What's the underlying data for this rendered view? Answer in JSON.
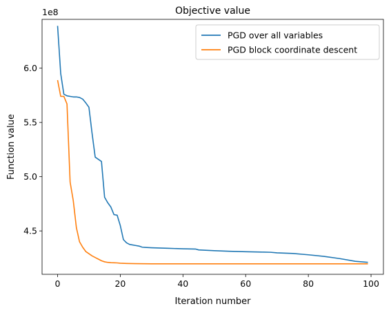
{
  "chart_data": {
    "type": "line",
    "title": "Objective value",
    "xlabel": "Iteration number",
    "ylabel": "Function value",
    "y_multiplier_label": "1e8",
    "xlim": [
      -4.95,
      103.95
    ],
    "ylim": [
      4.1,
      6.45
    ],
    "x_ticks": [
      0,
      20,
      40,
      60,
      80,
      100
    ],
    "x_tick_labels": [
      "0",
      "20",
      "40",
      "60",
      "80",
      "100"
    ],
    "y_ticks": [
      4.5,
      5.0,
      5.5,
      6.0
    ],
    "y_tick_labels": [
      "4.5",
      "5.0",
      "5.5",
      "6.0"
    ],
    "grid": false,
    "legend_position": "top-right",
    "series": [
      {
        "name": "PGD over all variables",
        "color": "#1f77b4",
        "x": [
          0,
          1,
          2,
          3,
          4,
          5,
          6,
          7,
          8,
          9,
          10,
          11,
          12,
          13,
          14,
          15,
          16,
          17,
          18,
          19,
          20,
          21,
          22,
          23,
          24,
          25,
          26,
          27,
          28,
          30,
          35,
          40,
          44,
          45,
          50,
          55,
          60,
          65,
          68,
          70,
          75,
          80,
          85,
          90,
          95,
          99
        ],
        "y": [
          6.39,
          5.95,
          5.76,
          5.745,
          5.74,
          5.735,
          5.735,
          5.73,
          5.715,
          5.68,
          5.64,
          5.4,
          5.18,
          5.16,
          5.14,
          4.81,
          4.76,
          4.72,
          4.65,
          4.645,
          4.55,
          4.42,
          4.39,
          4.375,
          4.37,
          4.365,
          4.36,
          4.35,
          4.348,
          4.345,
          4.34,
          4.335,
          4.333,
          4.325,
          4.318,
          4.312,
          4.308,
          4.305,
          4.303,
          4.298,
          4.292,
          4.28,
          4.265,
          4.245,
          4.22,
          4.21
        ]
      },
      {
        "name": "PGD block coordinate descent",
        "color": "#ff7f0e",
        "x": [
          0,
          1,
          2,
          3,
          4,
          5,
          6,
          7,
          8,
          9,
          10,
          11,
          12,
          13,
          14,
          15,
          16,
          17,
          18,
          19,
          20,
          22,
          25,
          30,
          40,
          50,
          60,
          70,
          80,
          90,
          99
        ],
        "y": [
          5.89,
          5.74,
          5.74,
          5.67,
          4.95,
          4.78,
          4.53,
          4.4,
          4.35,
          4.31,
          4.29,
          4.27,
          4.255,
          4.24,
          4.225,
          4.215,
          4.21,
          4.207,
          4.206,
          4.205,
          4.202,
          4.2,
          4.198,
          4.197,
          4.197,
          4.197,
          4.197,
          4.197,
          4.197,
          4.197,
          4.197
        ]
      }
    ]
  }
}
